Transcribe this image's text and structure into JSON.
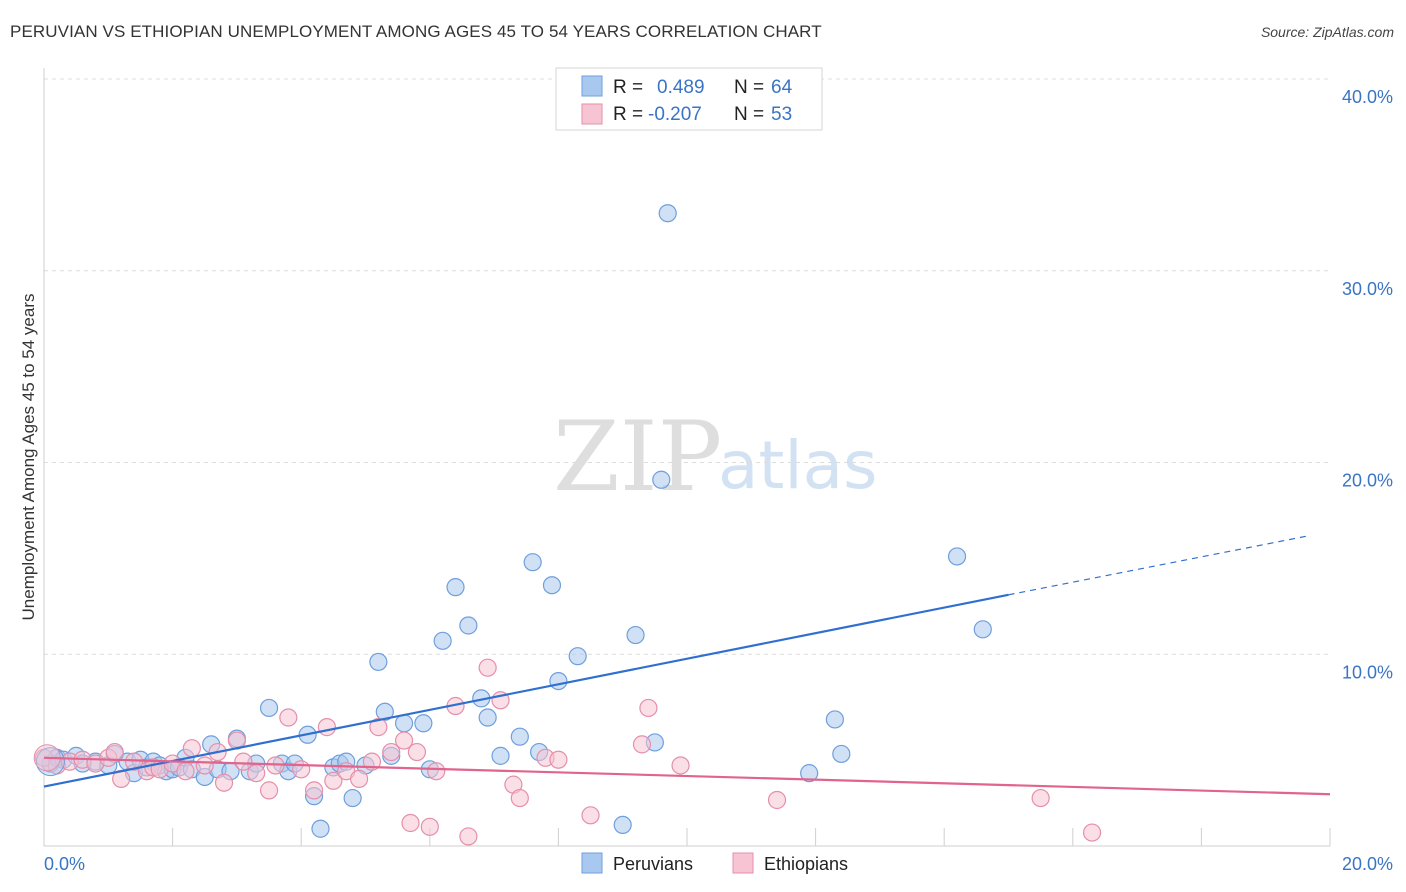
{
  "title": "PERUVIAN VS ETHIOPIAN UNEMPLOYMENT AMONG AGES 45 TO 54 YEARS CORRELATION CHART",
  "source": "Source: ZipAtlas.com",
  "watermark": {
    "zip": "ZIP",
    "atlas": "atlas"
  },
  "legend": {
    "rows": [
      {
        "r_label": "R =",
        "r_value": "0.489",
        "n_label": "N =",
        "n_value": "64",
        "color": "#a9c8ef",
        "stroke": "#6f9fdc"
      },
      {
        "r_label": "R =",
        "r_value": "-0.207",
        "n_label": "N =",
        "n_value": "53",
        "color": "#f7c4d3",
        "stroke": "#e58fab"
      }
    ]
  },
  "bottom_legend": {
    "peruvians": "Peruvians",
    "ethiopians": "Ethiopians"
  },
  "chart_data": {
    "type": "scatter",
    "title": "PERUVIAN VS ETHIOPIAN UNEMPLOYMENT AMONG AGES 45 TO 54 YEARS CORRELATION CHART",
    "xlabel": "",
    "ylabel": "Unemployment Among Ages 45 to 54 years",
    "xlim": [
      0,
      20
    ],
    "ylim": [
      0,
      40
    ],
    "x_tick_labels": [
      "0.0%",
      "20.0%"
    ],
    "y_tick_labels": [
      "10.0%",
      "20.0%",
      "30.0%",
      "40.0%"
    ],
    "y_ticks": [
      10,
      20,
      30,
      40
    ],
    "grid": true,
    "legend_position": "top-center",
    "series": [
      {
        "name": "Peruvians",
        "color": "#a9c8ef",
        "stroke": "#6f9fdc",
        "line_color": "#2f6fd0",
        "trend": {
          "x0": 0,
          "y0": 3.1,
          "x1": 15,
          "y1": 13.1,
          "x_dash_end": 19.7,
          "y_dash_end": 16.2
        },
        "points": [
          [
            0.1,
            4.3
          ],
          [
            0.2,
            4.6
          ],
          [
            0.3,
            4.5
          ],
          [
            0.5,
            4.7
          ],
          [
            0.6,
            4.3
          ],
          [
            0.8,
            4.4
          ],
          [
            1.0,
            4.2
          ],
          [
            1.1,
            4.8
          ],
          [
            1.3,
            4.4
          ],
          [
            1.4,
            3.8
          ],
          [
            1.5,
            4.5
          ],
          [
            1.6,
            4.1
          ],
          [
            1.7,
            4.4
          ],
          [
            1.8,
            4.2
          ],
          [
            1.9,
            3.9
          ],
          [
            2.0,
            4.0
          ],
          [
            2.1,
            4.1
          ],
          [
            2.2,
            4.6
          ],
          [
            2.3,
            4.0
          ],
          [
            2.5,
            3.6
          ],
          [
            2.6,
            5.3
          ],
          [
            2.7,
            4.0
          ],
          [
            2.9,
            3.9
          ],
          [
            3.0,
            5.6
          ],
          [
            3.2,
            3.9
          ],
          [
            3.3,
            4.3
          ],
          [
            3.5,
            7.2
          ],
          [
            3.7,
            4.3
          ],
          [
            3.8,
            3.9
          ],
          [
            3.9,
            4.3
          ],
          [
            4.1,
            5.8
          ],
          [
            4.2,
            2.6
          ],
          [
            4.3,
            0.9
          ],
          [
            4.5,
            4.1
          ],
          [
            4.6,
            4.3
          ],
          [
            4.7,
            4.4
          ],
          [
            4.8,
            2.5
          ],
          [
            5.0,
            4.2
          ],
          [
            5.2,
            9.6
          ],
          [
            5.3,
            7.0
          ],
          [
            5.4,
            4.7
          ],
          [
            5.6,
            6.4
          ],
          [
            5.9,
            6.4
          ],
          [
            6.0,
            4.0
          ],
          [
            6.2,
            10.7
          ],
          [
            6.4,
            13.5
          ],
          [
            6.6,
            11.5
          ],
          [
            6.8,
            7.7
          ],
          [
            6.9,
            6.7
          ],
          [
            7.1,
            4.7
          ],
          [
            7.4,
            5.7
          ],
          [
            7.6,
            14.8
          ],
          [
            7.7,
            4.9
          ],
          [
            7.9,
            13.6
          ],
          [
            8.0,
            8.6
          ],
          [
            8.3,
            9.9
          ],
          [
            9.0,
            1.1
          ],
          [
            9.2,
            11.0
          ],
          [
            9.5,
            5.4
          ],
          [
            9.7,
            33.0
          ],
          [
            9.6,
            19.1
          ],
          [
            11.9,
            3.8
          ],
          [
            12.3,
            6.6
          ],
          [
            12.4,
            4.8
          ],
          [
            14.2,
            15.1
          ],
          [
            14.6,
            11.3
          ]
        ]
      },
      {
        "name": "Ethiopians",
        "color": "#f7c4d3",
        "stroke": "#e58fab",
        "line_color": "#e0648c",
        "trend": {
          "x0": 0,
          "y0": 4.6,
          "x1": 20,
          "y1": 2.7
        },
        "points": [
          [
            0.0,
            4.6
          ],
          [
            0.2,
            4.2
          ],
          [
            0.4,
            4.4
          ],
          [
            0.6,
            4.5
          ],
          [
            0.8,
            4.3
          ],
          [
            1.0,
            4.6
          ],
          [
            1.1,
            4.9
          ],
          [
            1.2,
            3.5
          ],
          [
            1.4,
            4.4
          ],
          [
            1.6,
            3.9
          ],
          [
            1.7,
            4.1
          ],
          [
            1.8,
            4.0
          ],
          [
            2.0,
            4.3
          ],
          [
            2.2,
            3.9
          ],
          [
            2.3,
            5.1
          ],
          [
            2.5,
            4.2
          ],
          [
            2.7,
            4.9
          ],
          [
            2.8,
            3.3
          ],
          [
            3.0,
            5.5
          ],
          [
            3.1,
            4.4
          ],
          [
            3.3,
            3.8
          ],
          [
            3.5,
            2.9
          ],
          [
            3.6,
            4.2
          ],
          [
            3.8,
            6.7
          ],
          [
            4.0,
            4.0
          ],
          [
            4.2,
            2.9
          ],
          [
            4.4,
            6.2
          ],
          [
            4.5,
            3.4
          ],
          [
            4.7,
            3.9
          ],
          [
            4.9,
            3.5
          ],
          [
            5.1,
            4.4
          ],
          [
            5.2,
            6.2
          ],
          [
            5.4,
            4.9
          ],
          [
            5.6,
            5.5
          ],
          [
            5.8,
            4.9
          ],
          [
            5.7,
            1.2
          ],
          [
            6.0,
            1.0
          ],
          [
            6.1,
            3.9
          ],
          [
            6.4,
            7.3
          ],
          [
            6.6,
            0.5
          ],
          [
            6.9,
            9.3
          ],
          [
            7.1,
            7.6
          ],
          [
            7.3,
            3.2
          ],
          [
            7.4,
            2.5
          ],
          [
            7.8,
            4.6
          ],
          [
            8.0,
            4.5
          ],
          [
            8.5,
            1.6
          ],
          [
            9.3,
            5.3
          ],
          [
            9.4,
            7.2
          ],
          [
            9.9,
            4.2
          ],
          [
            11.4,
            2.4
          ],
          [
            15.5,
            2.5
          ],
          [
            16.3,
            0.7
          ]
        ]
      }
    ]
  }
}
